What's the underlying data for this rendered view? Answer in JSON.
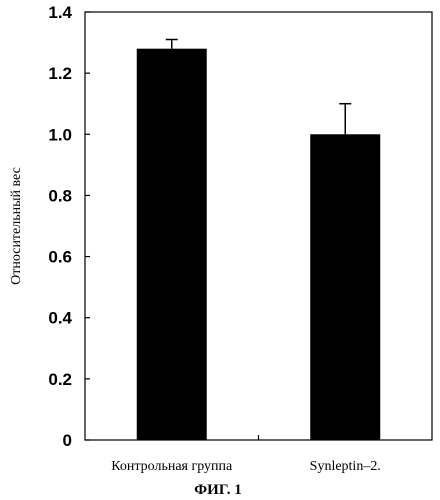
{
  "chart_data": {
    "type": "bar",
    "categories": [
      "Контрольная группа",
      "Synleptin–2."
    ],
    "values": [
      1.28,
      1.0
    ],
    "error_upper": [
      0.03,
      0.1
    ],
    "ylabel": "Относительный вес",
    "xlabel": "",
    "ylim": [
      0,
      1.4
    ],
    "yticks": [
      "0",
      "0.2",
      "0.4",
      "0.6",
      "0.8",
      "1.0",
      "1.2",
      "1.4"
    ],
    "grid": false,
    "bar_color": "#000000"
  },
  "caption": "ФИГ. 1"
}
